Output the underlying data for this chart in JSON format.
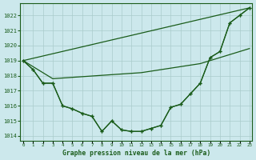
{
  "background_color": "#cce8ec",
  "grid_color": "#aacccc",
  "line_color": "#1a5c1a",
  "text_color": "#1a5c1a",
  "xlabel": "Graphe pression niveau de la mer (hPa)",
  "ylim": [
    1013.7,
    1022.8
  ],
  "xlim": [
    -0.3,
    23.3
  ],
  "yticks": [
    1014,
    1015,
    1016,
    1017,
    1018,
    1019,
    1020,
    1021,
    1022
  ],
  "xticks": [
    0,
    1,
    2,
    3,
    4,
    5,
    6,
    7,
    8,
    9,
    10,
    11,
    12,
    13,
    14,
    15,
    16,
    17,
    18,
    19,
    20,
    21,
    22,
    23
  ],
  "s1": [
    1019.0,
    1018.4,
    1017.5,
    1017.5,
    1016.0,
    1015.8,
    1015.5,
    1015.3,
    1014.3,
    1015.0,
    1014.4,
    1014.3,
    1014.3,
    1014.5,
    1014.7,
    1015.9,
    1016.1,
    1016.8,
    1017.5,
    1019.2,
    1019.6,
    1021.5,
    1022.0,
    1022.5
  ],
  "s2": [
    1019.0,
    1018.4,
    1017.5,
    1017.5,
    1016.0,
    1015.8,
    1015.5,
    1015.3,
    1014.3,
    1015.0,
    1014.4,
    1014.3,
    1014.3,
    1014.5,
    1014.7,
    1015.9,
    1016.1,
    1016.8,
    1017.5,
    1019.2,
    1019.6,
    1021.5,
    1022.0,
    1022.5
  ],
  "line1_x": [
    0,
    23
  ],
  "line1_y": [
    1019.0,
    1022.5
  ],
  "line2_x": [
    0,
    3,
    12,
    18,
    23
  ],
  "line2_y": [
    1019.0,
    1017.8,
    1018.2,
    1018.8,
    1019.8
  ]
}
